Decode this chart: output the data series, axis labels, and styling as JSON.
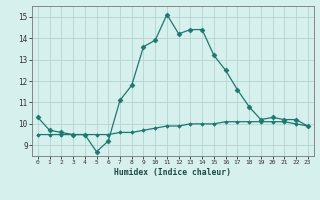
{
  "xlabel": "Humidex (Indice chaleur)",
  "ylabel": "",
  "background_color": "#d6f0ee",
  "grid_color": "#c8e4e0",
  "minor_grid_color": "#ddf0ed",
  "line_color": "#1a7a6e",
  "xlim": [
    -0.5,
    23.5
  ],
  "ylim": [
    8.5,
    15.5
  ],
  "xticks": [
    0,
    1,
    2,
    3,
    4,
    5,
    6,
    7,
    8,
    9,
    10,
    11,
    12,
    13,
    14,
    15,
    16,
    17,
    18,
    19,
    20,
    21,
    22,
    23
  ],
  "yticks": [
    9,
    10,
    11,
    12,
    13,
    14,
    15
  ],
  "line1_x": [
    0,
    1,
    2,
    3,
    4,
    5,
    6,
    7,
    8,
    9,
    10,
    11,
    12,
    13,
    14,
    15,
    16,
    17,
    18,
    19,
    20,
    21,
    22,
    23
  ],
  "line1_y": [
    10.3,
    9.7,
    9.6,
    9.5,
    9.5,
    8.7,
    9.2,
    11.1,
    11.8,
    13.6,
    13.9,
    15.1,
    14.2,
    14.4,
    14.4,
    13.2,
    12.5,
    11.6,
    10.8,
    10.2,
    10.3,
    10.2,
    10.2,
    9.9
  ],
  "line2_x": [
    0,
    1,
    2,
    3,
    4,
    5,
    6,
    7,
    8,
    9,
    10,
    11,
    12,
    13,
    14,
    15,
    16,
    17,
    18,
    19,
    20,
    21,
    22,
    23
  ],
  "line2_y": [
    9.5,
    9.5,
    9.5,
    9.5,
    9.5,
    9.5,
    9.5,
    9.6,
    9.6,
    9.7,
    9.8,
    9.9,
    9.9,
    10.0,
    10.0,
    10.0,
    10.1,
    10.1,
    10.1,
    10.1,
    10.1,
    10.1,
    10.0,
    9.9
  ]
}
